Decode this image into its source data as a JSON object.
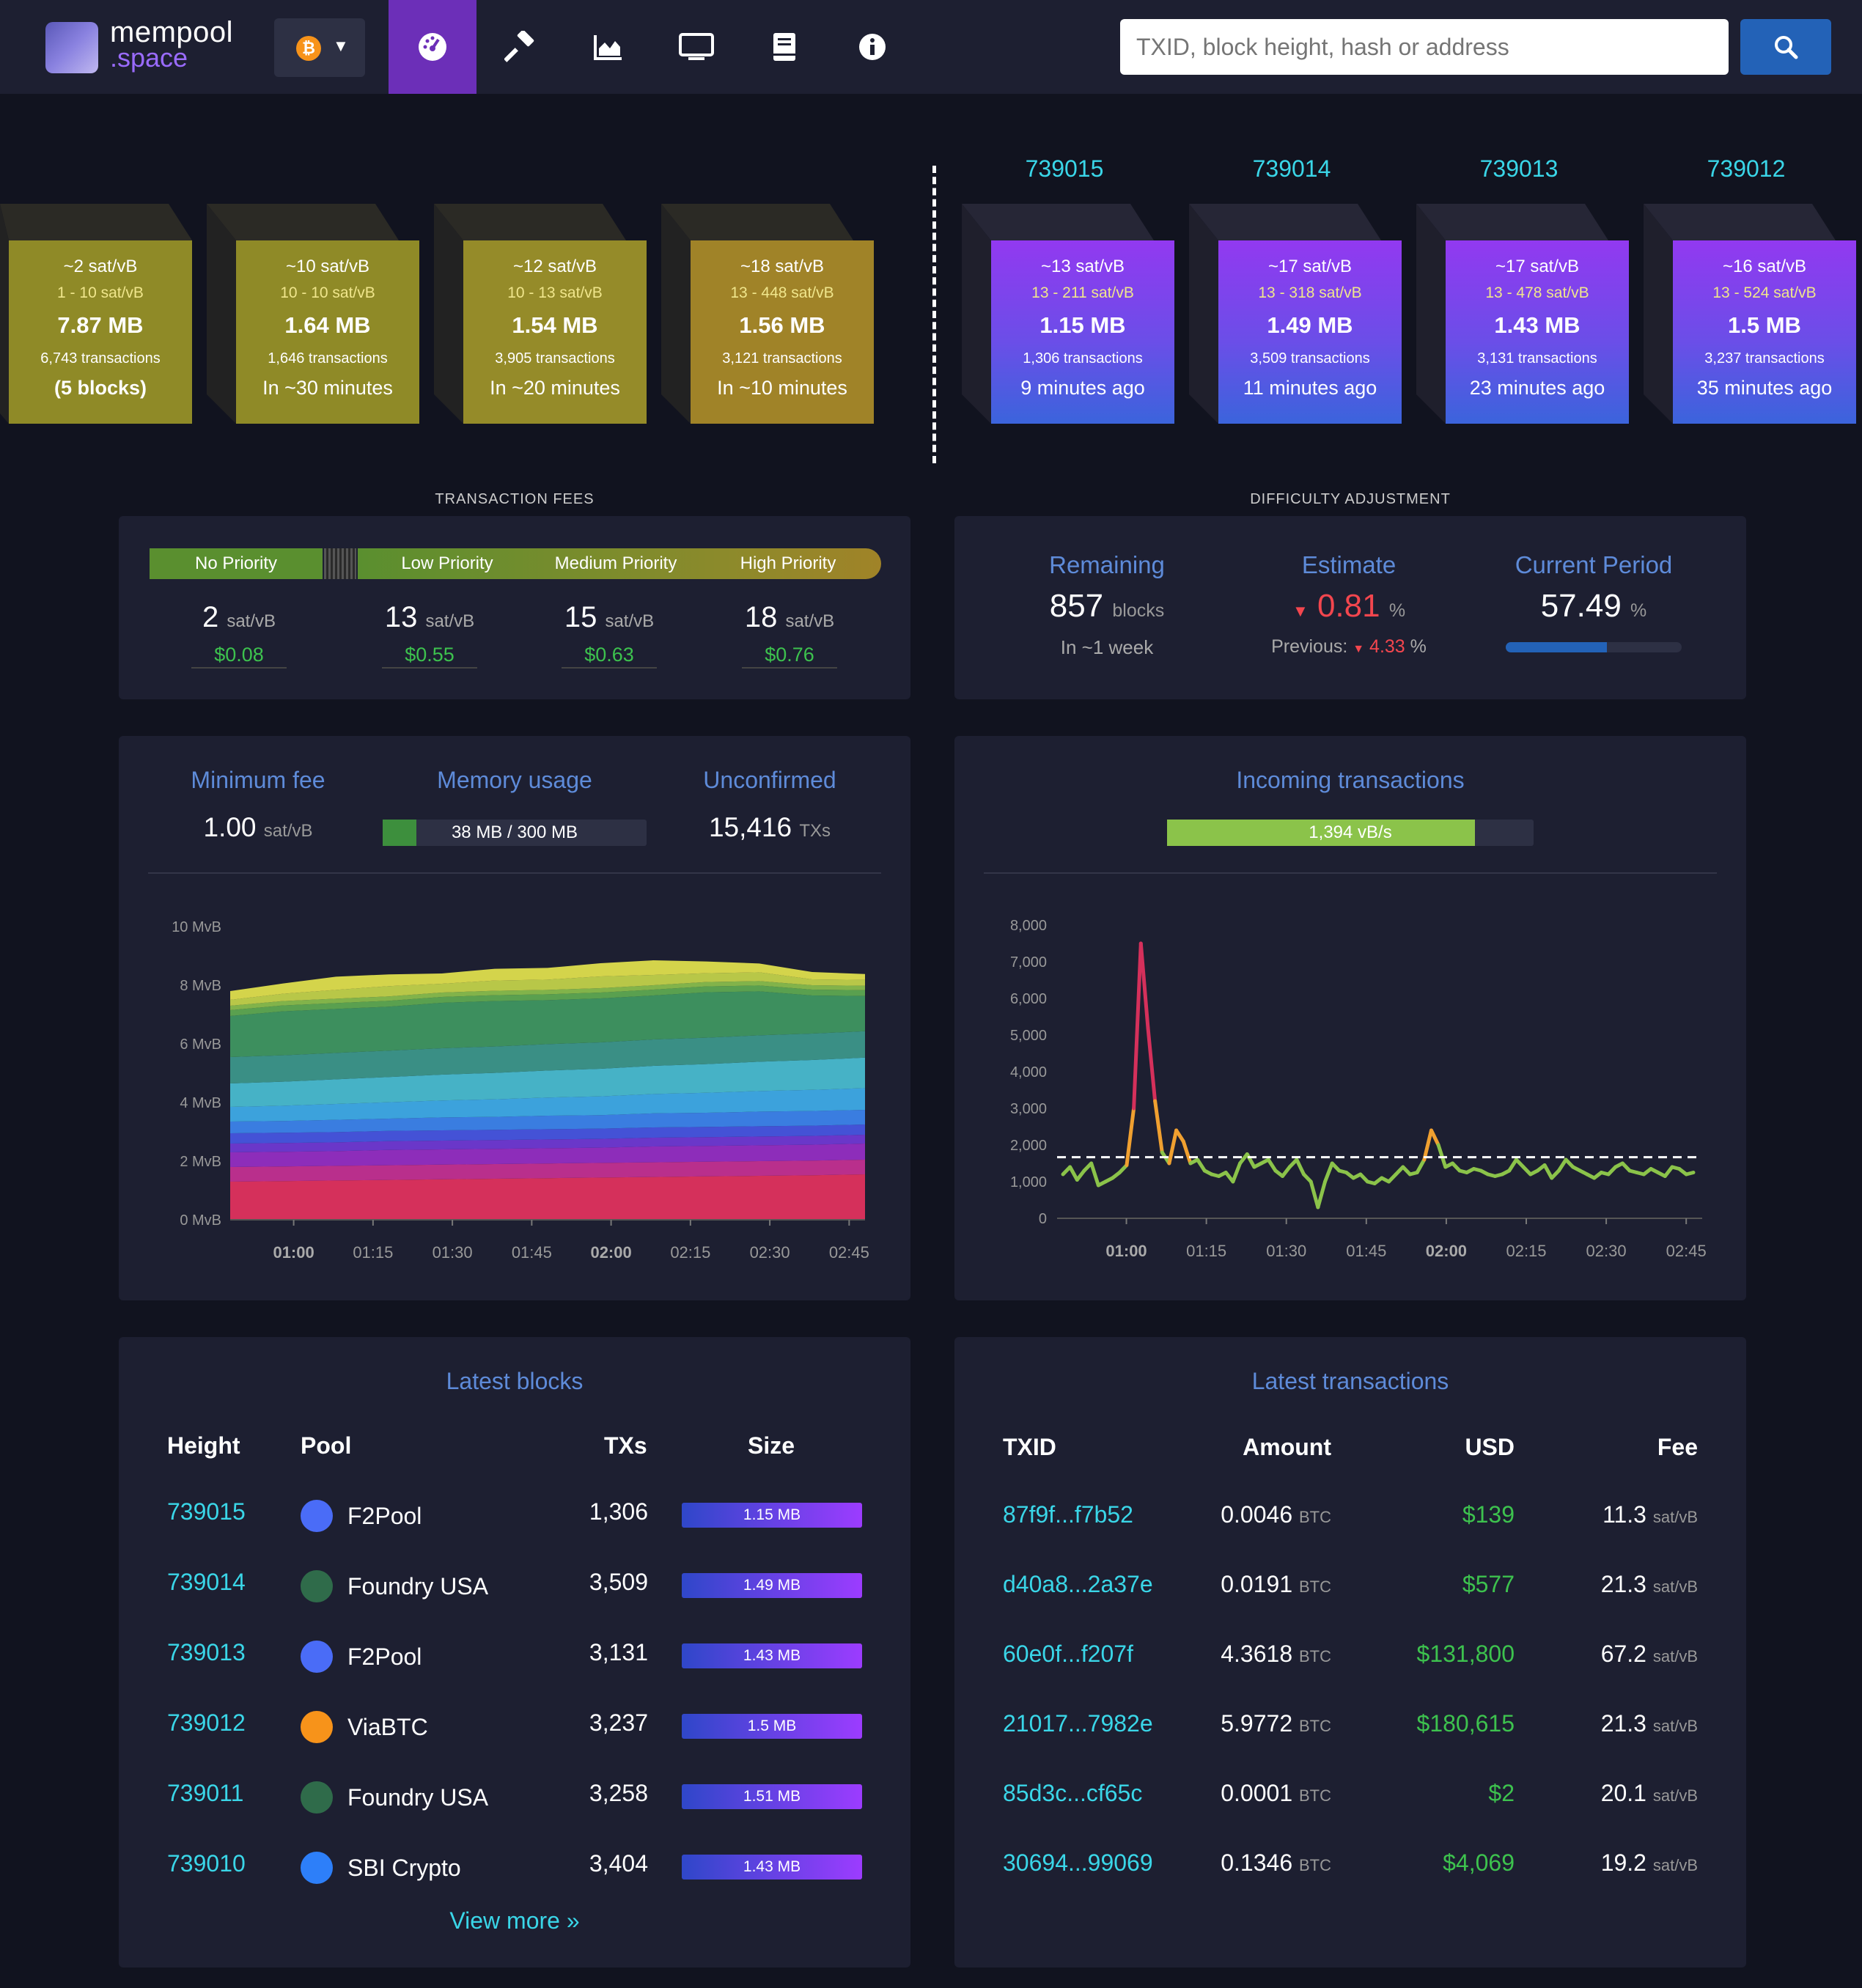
{
  "nav": {
    "logo_line1": "mempool",
    "logo_line2": ".space",
    "network_icon": "bitcoin-icon",
    "tabs": [
      {
        "name": "dashboard",
        "icon": "dashboard-icon"
      },
      {
        "name": "mining",
        "icon": "hammer-icon"
      },
      {
        "name": "graphs",
        "icon": "chart-area-icon"
      },
      {
        "name": "tv",
        "icon": "monitor-icon"
      },
      {
        "name": "docs",
        "icon": "book-icon"
      },
      {
        "name": "about",
        "icon": "info-icon"
      }
    ],
    "search_placeholder": "TXID, block height, hash or address"
  },
  "mempool_blocks": [
    {
      "fee": "~2 sat/vB",
      "range": "1 - 10 sat/vB",
      "size": "7.87 MB",
      "txs": "6,743 transactions",
      "eta": "(5 blocks)"
    },
    {
      "fee": "~10 sat/vB",
      "range": "10 - 10 sat/vB",
      "size": "1.64 MB",
      "txs": "1,646 transactions",
      "eta": "In ~30 minutes"
    },
    {
      "fee": "~12 sat/vB",
      "range": "10 - 13 sat/vB",
      "size": "1.54 MB",
      "txs": "3,905 transactions",
      "eta": "In ~20 minutes"
    },
    {
      "fee": "~18 sat/vB",
      "range": "13 - 448 sat/vB",
      "size": "1.56 MB",
      "txs": "3,121 transactions",
      "eta": "In ~10 minutes"
    }
  ],
  "mined_blocks": [
    {
      "height": "739015",
      "fee": "~13 sat/vB",
      "range": "13 - 211 sat/vB",
      "size": "1.15 MB",
      "txs": "1,306 transactions",
      "ago": "9 minutes ago"
    },
    {
      "height": "739014",
      "fee": "~17 sat/vB",
      "range": "13 - 318 sat/vB",
      "size": "1.49 MB",
      "txs": "3,509 transactions",
      "ago": "11 minutes ago"
    },
    {
      "height": "739013",
      "fee": "~17 sat/vB",
      "range": "13 - 478 sat/vB",
      "size": "1.43 MB",
      "txs": "3,131 transactions",
      "ago": "23 minutes ago"
    },
    {
      "height": "739012",
      "fee": "~16 sat/vB",
      "range": "13 - 524 sat/vB",
      "size": "1.5 MB",
      "txs": "3,237 transactions",
      "ago": "35 minutes ago"
    }
  ],
  "fees": {
    "title": "TRANSACTION FEES",
    "labels": [
      "No Priority",
      "Low Priority",
      "Medium Priority",
      "High Priority"
    ],
    "values": [
      "2",
      "13",
      "15",
      "18"
    ],
    "unit": "sat/vB",
    "usd": [
      "$0.08",
      "$0.55",
      "$0.63",
      "$0.76"
    ]
  },
  "difficulty": {
    "title": "DIFFICULTY ADJUSTMENT",
    "remaining_label": "Remaining",
    "remaining_value": "857",
    "remaining_unit": "blocks",
    "remaining_sub": "In ~1 week",
    "estimate_label": "Estimate",
    "estimate_value": "0.81",
    "percent": "%",
    "previous_label": "Previous:",
    "previous_value": "4.33",
    "period_label": "Current Period",
    "period_value": "57.49",
    "period_progress": 0.5749
  },
  "mempool_stats": {
    "min_fee_label": "Minimum fee",
    "min_fee_value": "1.00",
    "min_fee_unit": "sat/vB",
    "memory_label": "Memory usage",
    "memory_value": "38 MB / 300 MB",
    "memory_fraction": 0.127,
    "unconfirmed_label": "Unconfirmed",
    "unconfirmed_value": "15,416",
    "unconfirmed_unit": "TXs"
  },
  "incoming": {
    "label": "Incoming transactions",
    "rate": "1,394 vB/s",
    "rate_fraction": 0.84
  },
  "chart_data": [
    {
      "type": "area",
      "stacked": true,
      "yunit": "MvB",
      "ylim": [
        0,
        10
      ],
      "y_ticks": [
        "0 MvB",
        "2 MvB",
        "4 MvB",
        "6 MvB",
        "8 MvB",
        "10 MvB"
      ],
      "x_ticks": [
        "01:00",
        "01:15",
        "01:30",
        "01:45",
        "02:00",
        "02:15",
        "02:30",
        "02:45"
      ],
      "x_range": [
        "00:48",
        "02:48"
      ],
      "colors": [
        "#d5305b",
        "#b92f8c",
        "#8d2dba",
        "#6a37c9",
        "#4452d6",
        "#3a7de0",
        "#3ca2dc",
        "#46b2c6",
        "#3a8f85",
        "#3d8f5e",
        "#5aa04f",
        "#82b34a",
        "#b8c748",
        "#d4d44b"
      ],
      "series": [
        {
          "values": [
            1.3,
            1.32,
            1.34,
            1.36,
            1.38,
            1.4,
            1.42,
            1.44,
            1.46,
            1.48,
            1.5,
            1.52,
            1.55
          ]
        },
        {
          "values": [
            0.5,
            0.5,
            0.5,
            0.5,
            0.5,
            0.5,
            0.5,
            0.5,
            0.5,
            0.5,
            0.5,
            0.5,
            0.5
          ]
        },
        {
          "values": [
            0.5,
            0.5,
            0.5,
            0.52,
            0.52,
            0.52,
            0.52,
            0.52,
            0.54,
            0.54,
            0.54,
            0.54,
            0.55
          ]
        },
        {
          "values": [
            0.3,
            0.3,
            0.3,
            0.3,
            0.3,
            0.3,
            0.3,
            0.3,
            0.3,
            0.3,
            0.3,
            0.3,
            0.3
          ]
        },
        {
          "values": [
            0.35,
            0.35,
            0.35,
            0.35,
            0.35,
            0.35,
            0.35,
            0.35,
            0.35,
            0.35,
            0.35,
            0.35,
            0.35
          ]
        },
        {
          "values": [
            0.4,
            0.4,
            0.42,
            0.42,
            0.44,
            0.44,
            0.46,
            0.46,
            0.48,
            0.48,
            0.5,
            0.5,
            0.5
          ]
        },
        {
          "values": [
            0.5,
            0.52,
            0.54,
            0.56,
            0.58,
            0.6,
            0.62,
            0.64,
            0.66,
            0.68,
            0.7,
            0.72,
            0.74
          ]
        },
        {
          "values": [
            0.8,
            0.82,
            0.84,
            0.86,
            0.88,
            0.9,
            0.92,
            0.94,
            0.96,
            0.98,
            1.0,
            1.02,
            1.04
          ]
        },
        {
          "values": [
            0.9,
            0.9,
            0.9,
            0.9,
            0.9,
            0.9,
            0.9,
            0.9,
            0.9,
            0.9,
            0.9,
            0.9,
            0.9
          ]
        },
        {
          "values": [
            1.4,
            1.5,
            1.5,
            1.5,
            1.55,
            1.55,
            1.5,
            1.5,
            1.5,
            1.55,
            1.5,
            1.3,
            1.2
          ]
        },
        {
          "values": [
            0.2,
            0.2,
            0.2,
            0.2,
            0.2,
            0.2,
            0.2,
            0.2,
            0.2,
            0.2,
            0.2,
            0.2,
            0.2
          ]
        },
        {
          "values": [
            0.15,
            0.15,
            0.15,
            0.15,
            0.15,
            0.15,
            0.15,
            0.15,
            0.15,
            0.15,
            0.15,
            0.15,
            0.15
          ]
        },
        {
          "values": [
            0.2,
            0.25,
            0.3,
            0.35,
            0.3,
            0.35,
            0.35,
            0.4,
            0.35,
            0.3,
            0.3,
            0.2,
            0.2
          ]
        },
        {
          "values": [
            0.3,
            0.35,
            0.45,
            0.4,
            0.35,
            0.4,
            0.4,
            0.45,
            0.5,
            0.4,
            0.3,
            0.25,
            0.2
          ]
        }
      ]
    },
    {
      "type": "line",
      "ylim": [
        0,
        8000
      ],
      "y_ticks": [
        "0",
        "1,000",
        "2,000",
        "3,000",
        "4,000",
        "5,000",
        "6,000",
        "7,000",
        "8,000"
      ],
      "x_ticks": [
        "01:00",
        "01:15",
        "01:30",
        "01:45",
        "02:00",
        "02:15",
        "02:30",
        "02:45"
      ],
      "x_range": [
        "00:47",
        "02:48"
      ],
      "reference_line": 1667,
      "values": [
        1200,
        1400,
        1050,
        1300,
        1500,
        900,
        1000,
        1100,
        1250,
        1450,
        3000,
        7500,
        5200,
        3200,
        1800,
        1500,
        2400,
        2100,
        1500,
        1600,
        1300,
        1200,
        1150,
        1250,
        1000,
        1500,
        1750,
        1400,
        1500,
        1600,
        1300,
        1150,
        1400,
        1600,
        1200,
        1000,
        300,
        1000,
        1500,
        1300,
        1250,
        1100,
        1200,
        1000,
        950,
        1100,
        1000,
        1200,
        1400,
        1200,
        1250,
        1600,
        2400,
        2000,
        1400,
        1500,
        1300,
        1250,
        1350,
        1300,
        1200,
        1150,
        1200,
        1300,
        1600,
        1400,
        1200,
        1300,
        1450,
        1100,
        1300,
        1600,
        1400,
        1300,
        1200,
        1100,
        1250,
        1200,
        1400,
        1500,
        1300,
        1250,
        1200,
        1350,
        1250,
        1150,
        1400,
        1350,
        1200,
        1250
      ]
    }
  ],
  "latest_blocks": {
    "title": "Latest blocks",
    "headers": [
      "Height",
      "Pool",
      "TXs",
      "Size"
    ],
    "rows": [
      {
        "height": "739015",
        "pool": "F2Pool",
        "icon": "f2pool-icon",
        "txs": "1,306",
        "size": "1.15 MB"
      },
      {
        "height": "739014",
        "pool": "Foundry USA",
        "icon": "foundry-icon",
        "txs": "3,509",
        "size": "1.49 MB"
      },
      {
        "height": "739013",
        "pool": "F2Pool",
        "icon": "f2pool-icon",
        "txs": "3,131",
        "size": "1.43 MB"
      },
      {
        "height": "739012",
        "pool": "ViaBTC",
        "icon": "viabtc-icon",
        "txs": "3,237",
        "size": "1.5 MB"
      },
      {
        "height": "739011",
        "pool": "Foundry USA",
        "icon": "foundry-icon",
        "txs": "3,258",
        "size": "1.51 MB"
      },
      {
        "height": "739010",
        "pool": "SBI Crypto",
        "icon": "sbi-crypto-icon",
        "txs": "3,404",
        "size": "1.43 MB"
      }
    ],
    "view_more": "View more »"
  },
  "latest_transactions": {
    "title": "Latest transactions",
    "headers": [
      "TXID",
      "Amount",
      "USD",
      "Fee"
    ],
    "rows": [
      {
        "txid": "87f9f...f7b52",
        "amount": "0.0046",
        "amount_unit": "BTC",
        "usd": "$139",
        "fee": "11.3",
        "fee_unit": "sat/vB"
      },
      {
        "txid": "d40a8...2a37e",
        "amount": "0.0191",
        "amount_unit": "BTC",
        "usd": "$577",
        "fee": "21.3",
        "fee_unit": "sat/vB"
      },
      {
        "txid": "60e0f...f207f",
        "amount": "4.3618",
        "amount_unit": "BTC",
        "usd": "$131,800",
        "fee": "67.2",
        "fee_unit": "sat/vB"
      },
      {
        "txid": "21017...7982e",
        "amount": "5.9772",
        "amount_unit": "BTC",
        "usd": "$180,615",
        "fee": "21.3",
        "fee_unit": "sat/vB"
      },
      {
        "txid": "85d3c...cf65c",
        "amount": "0.0001",
        "amount_unit": "BTC",
        "usd": "$2",
        "fee": "20.1",
        "fee_unit": "sat/vB"
      },
      {
        "txid": "30694...99069",
        "amount": "0.1346",
        "amount_unit": "BTC",
        "usd": "$4,069",
        "fee": "19.2",
        "fee_unit": "sat/vB"
      }
    ]
  }
}
